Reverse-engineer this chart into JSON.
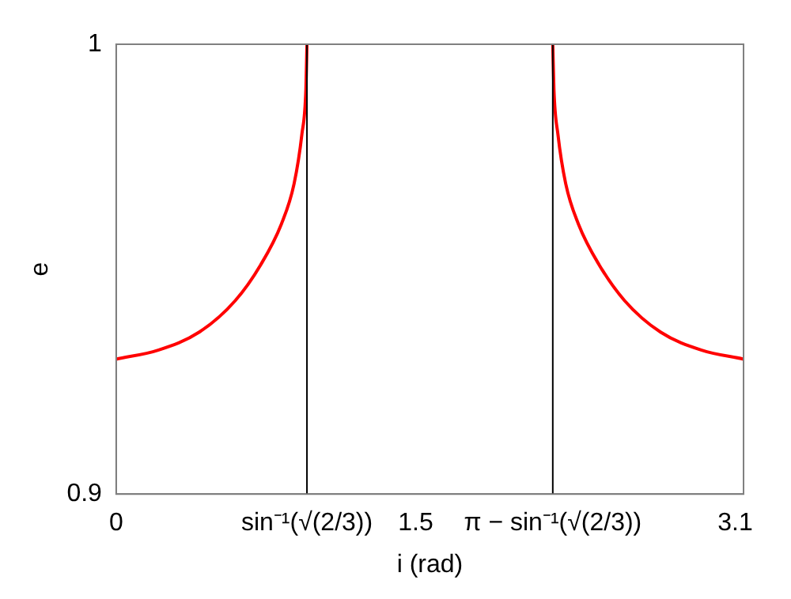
{
  "chart_data": {
    "type": "line",
    "xlabel": "i (rad)",
    "ylabel": "e",
    "x": [
      0,
      0.21,
      0.416,
      0.596,
      0.724,
      0.827,
      0.891,
      0.93,
      0.95,
      0.9553,
      null,
      2.1863,
      2.192,
      2.212,
      2.251,
      2.315,
      2.418,
      2.546,
      2.726,
      2.932,
      3.1416
    ],
    "series": [
      {
        "color": "#ff0000",
        "values": [
          0.93,
          0.932,
          0.936,
          0.943,
          0.951,
          0.96,
          0.969,
          0.98,
          0.99,
          1,
          null,
          1,
          0.99,
          0.98,
          0.969,
          0.96,
          0.951,
          0.943,
          0.936,
          0.932,
          0.93
        ]
      }
    ],
    "xlim": [
      0,
      3.1416
    ],
    "xticks": [
      0,
      {
        "value": 0.9553,
        "label": "sin⁻¹(√(2/3))"
      },
      1.5,
      {
        "value": 2.1863,
        "label": "π − sin⁻¹(√(2/3))"
      },
      3.1
    ],
    "ylim": [
      0.9,
      1
    ],
    "yticks": [
      0.9,
      1
    ],
    "ref_lines": [
      {
        "axis": "x",
        "value": 0.9553,
        "color": "#000000"
      },
      {
        "axis": "x",
        "value": 2.1863,
        "color": "#000000"
      }
    ],
    "grid": false,
    "legend": false,
    "marker": "none",
    "line_style": "solid"
  }
}
